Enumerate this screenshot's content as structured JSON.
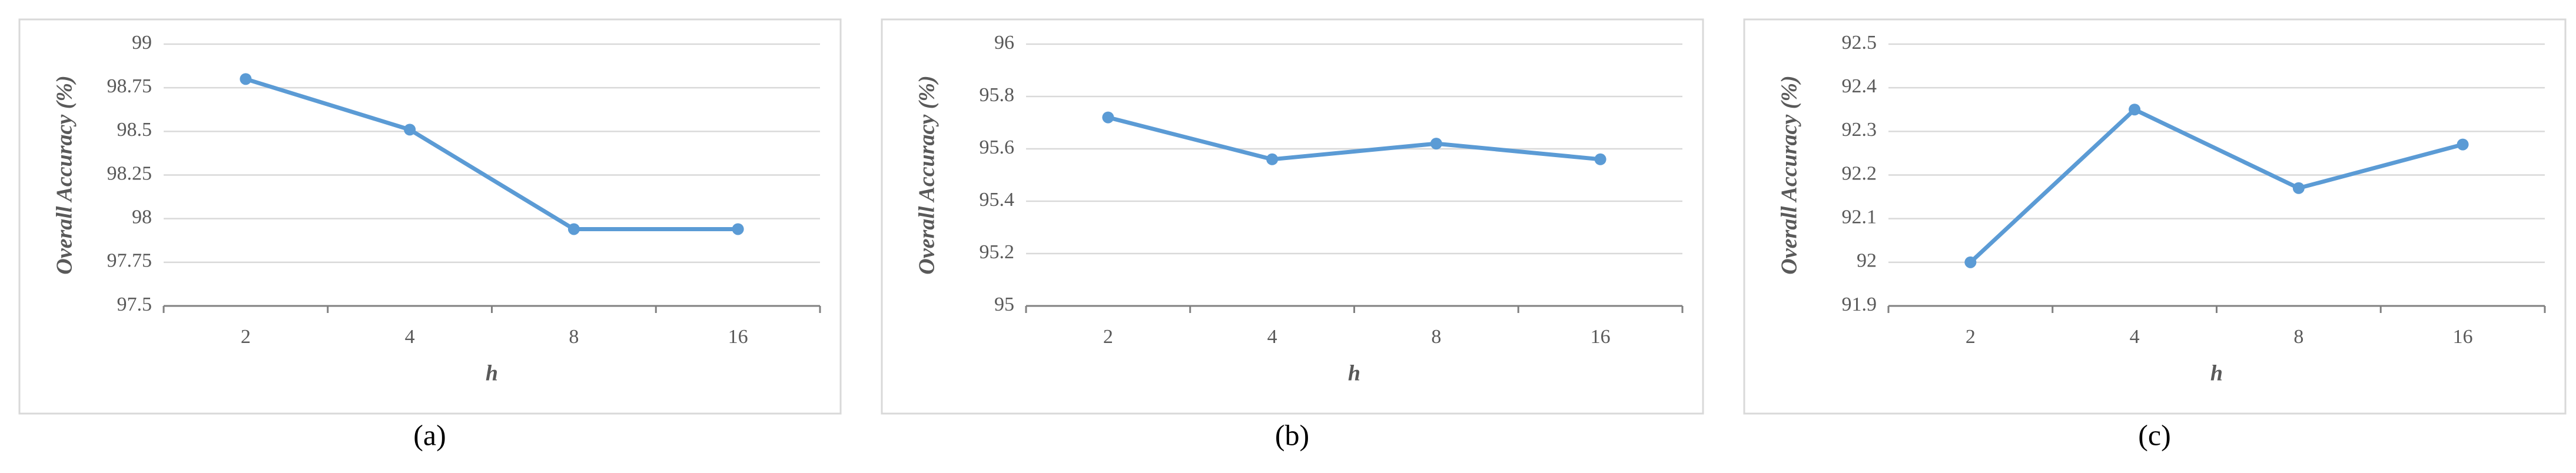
{
  "chart_data": [
    {
      "type": "line",
      "caption": "(a)",
      "x_label": "h",
      "y_label": "Overall Accuracy (%)",
      "categories": [
        "2",
        "4",
        "8",
        "16"
      ],
      "series": [
        {
          "color": "#5b9bd5",
          "values": [
            98.8,
            98.51,
            97.94,
            97.94
          ]
        }
      ],
      "ylim": [
        97.5,
        99
      ],
      "yticks": [
        97.5,
        97.75,
        98,
        98.25,
        98.5,
        98.75,
        99
      ],
      "grid": true
    },
    {
      "type": "line",
      "caption": "(b)",
      "x_label": "h",
      "y_label": "Overall Accuracy (%)",
      "categories": [
        "2",
        "4",
        "8",
        "16"
      ],
      "series": [
        {
          "color": "#5b9bd5",
          "values": [
            95.72,
            95.56,
            95.62,
            95.56
          ]
        }
      ],
      "ylim": [
        95,
        96
      ],
      "yticks": [
        95,
        95.2,
        95.4,
        95.6,
        95.8,
        96
      ],
      "grid": true
    },
    {
      "type": "line",
      "caption": "(c)",
      "x_label": "h",
      "y_label": "Overall Accuracy (%)",
      "categories": [
        "2",
        "4",
        "8",
        "16"
      ],
      "series": [
        {
          "color": "#5b9bd5",
          "values": [
            92.0,
            92.35,
            92.17,
            92.27
          ]
        }
      ],
      "ylim": [
        91.9,
        92.5
      ],
      "yticks": [
        91.9,
        92,
        92.1,
        92.2,
        92.3,
        92.4,
        92.5
      ],
      "grid": true
    }
  ]
}
